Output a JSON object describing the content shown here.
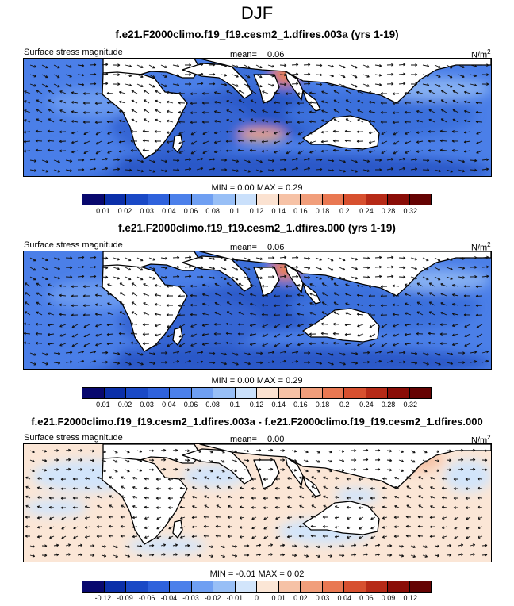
{
  "title": "DJF",
  "panels": [
    {
      "title": "f.e21.F2000climo.f19_f19.cesm2_1.dfires.003a (yrs 1-19)",
      "variable": "Surface stress magnitude",
      "mean_label": "mean=",
      "mean_value": "0.06",
      "units_base": "N/m",
      "units_exp": "2",
      "min_label": "MIN =",
      "min_value": "0.00",
      "max_label": "MAX =",
      "max_value": "0.29",
      "colorbar": {
        "ticks": [
          "0.01",
          "0.02",
          "0.03",
          "0.04",
          "0.06",
          "0.08",
          "0.1",
          "0.12",
          "0.14",
          "0.16",
          "0.18",
          "0.2",
          "0.24",
          "0.28",
          "0.32"
        ],
        "colors": [
          "#08086e",
          "#0b2fa9",
          "#1a49c6",
          "#2f62dc",
          "#4c80ea",
          "#6f9ff2",
          "#98bff6",
          "#cae0fb",
          "#fbe2d1",
          "#f6c2a6",
          "#f19e7b",
          "#e97852",
          "#d7502f",
          "#b62a17",
          "#8a0d07",
          "#650303"
        ]
      }
    },
    {
      "title": "f.e21.F2000climo.f19_f19.cesm2_1.dfires.000 (yrs 1-19)",
      "variable": "Surface stress magnitude",
      "mean_label": "mean=",
      "mean_value": "0.06",
      "units_base": "N/m",
      "units_exp": "2",
      "min_label": "MIN =",
      "min_value": "0.00",
      "max_label": "MAX =",
      "max_value": "0.29",
      "colorbar": {
        "ticks": [
          "0.01",
          "0.02",
          "0.03",
          "0.04",
          "0.06",
          "0.08",
          "0.1",
          "0.12",
          "0.14",
          "0.16",
          "0.18",
          "0.2",
          "0.24",
          "0.28",
          "0.32"
        ],
        "colors": [
          "#08086e",
          "#0b2fa9",
          "#1a49c6",
          "#2f62dc",
          "#4c80ea",
          "#6f9ff2",
          "#98bff6",
          "#cae0fb",
          "#fbe2d1",
          "#f6c2a6",
          "#f19e7b",
          "#e97852",
          "#d7502f",
          "#b62a17",
          "#8a0d07",
          "#650303"
        ]
      }
    },
    {
      "title": "f.e21.F2000climo.f19_f19.cesm2_1.dfires.003a - f.e21.F2000climo.f19_f19.cesm2_1.dfires.000",
      "variable": "Surface stress magnitude",
      "mean_label": "mean=",
      "mean_value": "0.00",
      "units_base": "N/m",
      "units_exp": "2",
      "min_label": "MIN =",
      "min_value": "-0.01",
      "max_label": "MAX =",
      "max_value": "0.02",
      "colorbar": {
        "ticks": [
          "-0.12",
          "-0.09",
          "-0.06",
          "-0.04",
          "-0.03",
          "-0.02",
          "-0.01",
          "0",
          "0.01",
          "0.02",
          "0.03",
          "0.04",
          "0.06",
          "0.09",
          "0.12"
        ],
        "colors": [
          "#08086e",
          "#0b2fa9",
          "#1a49c6",
          "#2f62dc",
          "#4c80ea",
          "#6f9ff2",
          "#98bff6",
          "#d2e5fb",
          "#fbe6d6",
          "#f6c2a6",
          "#f19e7b",
          "#e97852",
          "#d7502f",
          "#b62a17",
          "#8a0d07",
          "#650303"
        ]
      }
    }
  ]
}
